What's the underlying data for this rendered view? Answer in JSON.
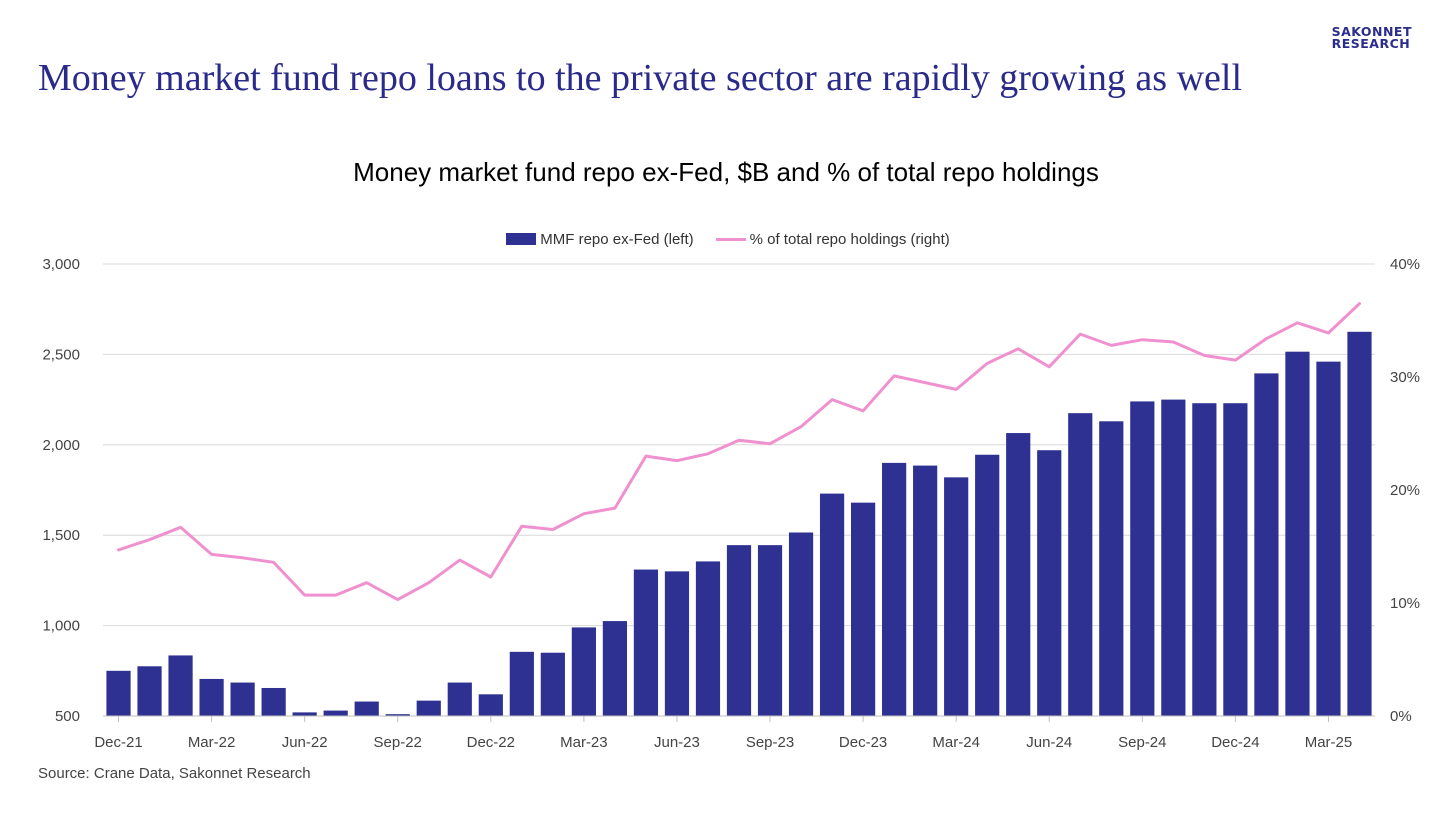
{
  "headline": "Money market fund repo loans to the private sector are rapidly growing as well",
  "logo": {
    "line1": "SAKONNET",
    "line2": "RESEARCH"
  },
  "source": "Source: Crane Data, Sakonnet Research",
  "colors": {
    "bar": "#2e3192",
    "line": "#f091cf",
    "headline": "#2a2a8a",
    "grid": "#d9d9d9",
    "axis": "#bfbfbf"
  },
  "chart_data": {
    "type": "bar",
    "title": "Money market fund repo ex-Fed, $B and % of total repo holdings",
    "legend_position": "top",
    "grid": true,
    "categories": [
      "Dec-21",
      "Jan-22",
      "Feb-22",
      "Mar-22",
      "Apr-22",
      "May-22",
      "Jun-22",
      "Jul-22",
      "Aug-22",
      "Sep-22",
      "Oct-22",
      "Nov-22",
      "Dec-22",
      "Jan-23",
      "Feb-23",
      "Mar-23",
      "Apr-23",
      "May-23",
      "Jun-23",
      "Jul-23",
      "Aug-23",
      "Sep-23",
      "Oct-23",
      "Nov-23",
      "Dec-23",
      "Jan-24",
      "Feb-24",
      "Mar-24",
      "Apr-24",
      "May-24",
      "Jun-24",
      "Jul-24",
      "Aug-24",
      "Sep-24",
      "Oct-24",
      "Nov-24",
      "Dec-24",
      "Jan-25",
      "Feb-25",
      "Mar-25",
      "Apr-25"
    ],
    "x_tick_labels": [
      "Dec-21",
      "Mar-22",
      "Jun-22",
      "Sep-22",
      "Dec-22",
      "Mar-23",
      "Jun-23",
      "Sep-23",
      "Dec-23",
      "Mar-24",
      "Jun-24",
      "Sep-24",
      "Dec-24",
      "Mar-25"
    ],
    "y_left": {
      "min": 500,
      "max": 3000,
      "ticks": [
        "500",
        "1,000",
        "1,500",
        "2,000",
        "2,500",
        "3,000"
      ],
      "tick_values": [
        500,
        1000,
        1500,
        2000,
        2500,
        3000
      ]
    },
    "y_right": {
      "min": 0,
      "max": 40,
      "ticks": [
        "0%",
        "10%",
        "20%",
        "30%",
        "40%"
      ],
      "tick_values": [
        0,
        10,
        20,
        30,
        40
      ]
    },
    "series": [
      {
        "name": "MMF repo ex-Fed (left)",
        "type": "bar",
        "axis": "left",
        "values": [
          750,
          775,
          835,
          705,
          685,
          655,
          520,
          530,
          580,
          510,
          585,
          685,
          620,
          855,
          850,
          990,
          1025,
          1310,
          1300,
          1355,
          1445,
          1445,
          1515,
          1730,
          1680,
          1900,
          1885,
          1820,
          1945,
          2065,
          1970,
          2175,
          2130,
          2240,
          2250,
          2230,
          2230,
          2395,
          2515,
          2460,
          2625
        ]
      },
      {
        "name": "% of total repo holdings (right)",
        "type": "line",
        "axis": "right",
        "values": [
          14.7,
          15.6,
          16.7,
          14.3,
          14.0,
          13.6,
          10.7,
          10.7,
          11.8,
          10.3,
          11.8,
          13.8,
          12.3,
          16.8,
          16.5,
          17.9,
          18.4,
          23.0,
          22.6,
          23.2,
          24.4,
          24.1,
          25.6,
          28.0,
          27.0,
          30.1,
          29.5,
          28.9,
          31.2,
          32.5,
          30.9,
          33.8,
          32.8,
          33.3,
          33.1,
          31.9,
          31.5,
          33.4,
          34.8,
          33.9,
          36.5
        ]
      }
    ]
  }
}
